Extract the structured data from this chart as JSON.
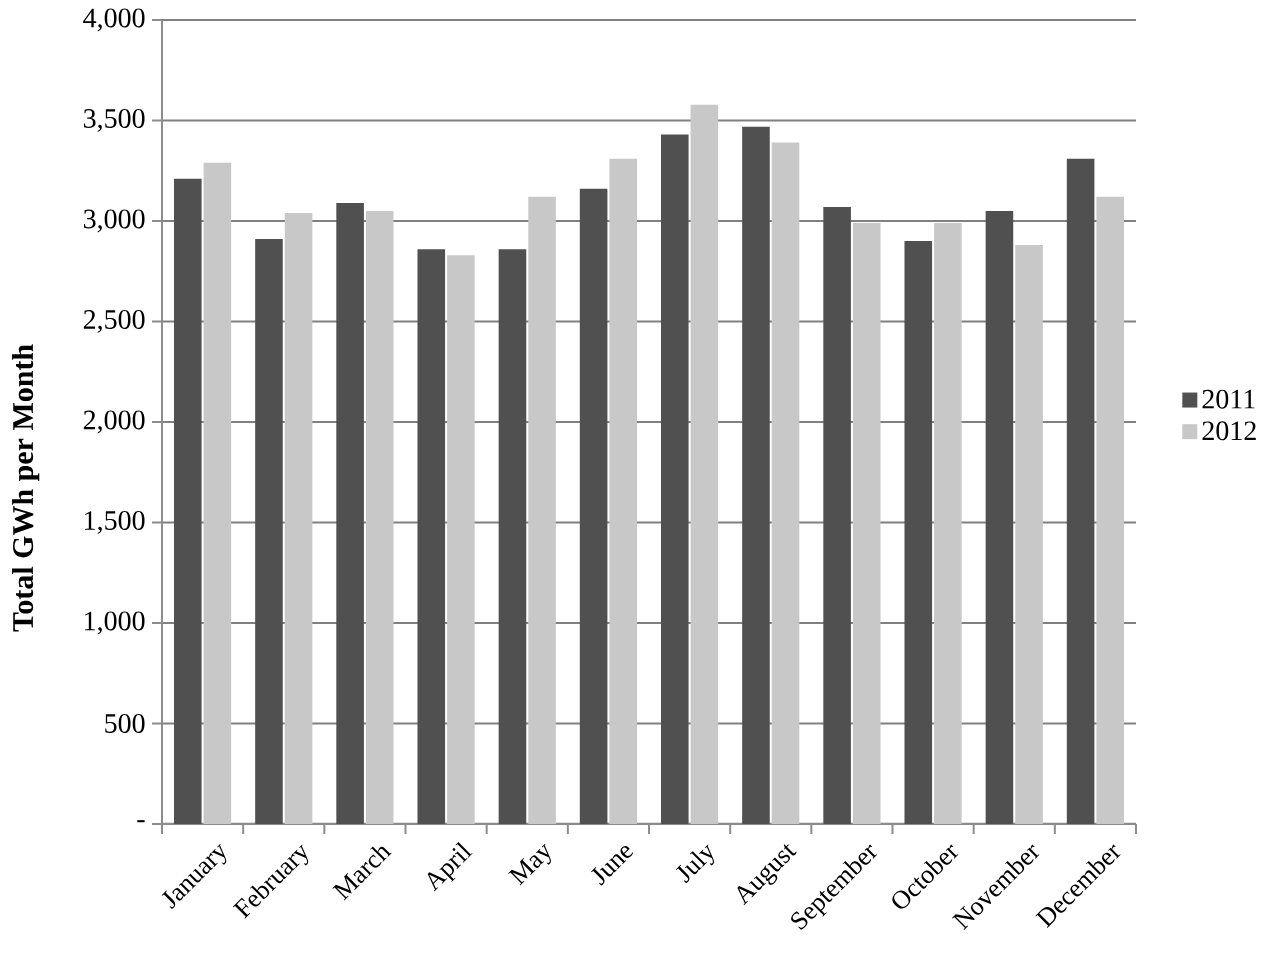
{
  "chart_data": {
    "type": "bar",
    "ylabel": "Total GWh per Month",
    "categories": [
      "January",
      "February",
      "March",
      "April",
      "May",
      "June",
      "July",
      "August",
      "September",
      "October",
      "November",
      "December"
    ],
    "series": [
      {
        "name": "2011",
        "color": "#505050",
        "values": [
          3210,
          2910,
          3090,
          2860,
          2860,
          3160,
          3430,
          3470,
          3070,
          2900,
          3050,
          3310
        ]
      },
      {
        "name": "2012",
        "color": "#c8c8c8",
        "values": [
          3290,
          3040,
          3050,
          2830,
          3120,
          3310,
          3580,
          3390,
          2990,
          2990,
          2880,
          3120
        ]
      }
    ],
    "ylim": [
      0,
      4000
    ],
    "yticks": [
      {
        "value": 0,
        "label": "-"
      },
      500,
      {
        "value": 1000,
        "label": "1,000"
      },
      {
        "value": 1500,
        "label": "1,500"
      },
      {
        "value": 2000,
        "label": "2,000"
      },
      {
        "value": 2500,
        "label": "2,500"
      },
      {
        "value": 3000,
        "label": "3,000"
      },
      {
        "value": 3500,
        "label": "3,500"
      },
      {
        "value": 4000,
        "label": "4,000"
      }
    ],
    "grid": "y",
    "legend": "right"
  }
}
